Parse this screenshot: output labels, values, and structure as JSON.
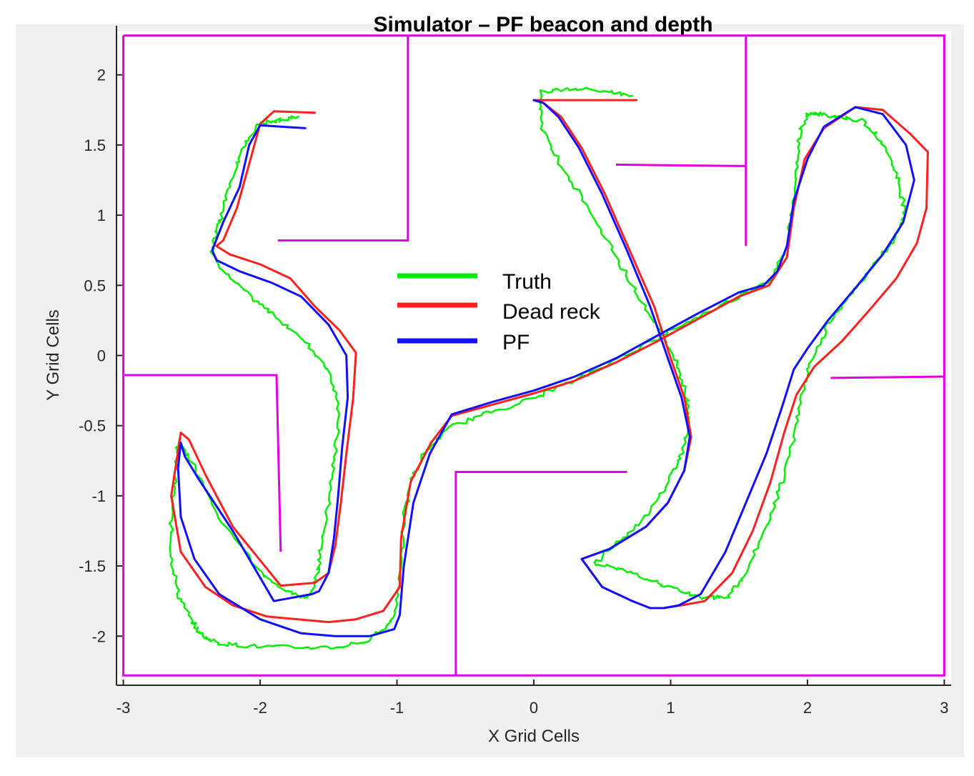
{
  "chart_data": {
    "type": "line",
    "title": "Simulator – PF beacon and depth",
    "xlabel": "X Grid Cells",
    "ylabel": "Y Grid Cells",
    "xlim": [
      -3.05,
      3.05
    ],
    "ylim": [
      -2.35,
      2.35
    ],
    "xticks": [
      -3,
      -2,
      -1,
      0,
      1,
      2,
      3
    ],
    "yticks": [
      -2,
      -1.5,
      -1,
      -0.5,
      0,
      0.5,
      1,
      1.5,
      2
    ],
    "grid": false,
    "legend_position": "center",
    "colors": {
      "truth": "#00ee00",
      "dead_reck": "#ff2020",
      "pf": "#1010ff",
      "walls": "#e000e0"
    },
    "walls": [
      [
        [
          -3.0,
          2.28
        ],
        [
          3.0,
          2.28
        ],
        [
          3.0,
          -2.28
        ],
        [
          -3.0,
          -2.28
        ],
        [
          -3.0,
          2.28
        ]
      ],
      [
        [
          -0.92,
          2.28
        ],
        [
          -0.92,
          0.82
        ],
        [
          -1.87,
          0.82
        ]
      ],
      [
        [
          -3.0,
          -0.14
        ],
        [
          -1.88,
          -0.14
        ],
        [
          -1.85,
          -1.4
        ]
      ],
      [
        [
          1.55,
          2.28
        ],
        [
          1.55,
          0.78
        ]
      ],
      [
        [
          0.6,
          1.36
        ],
        [
          1.55,
          1.35
        ]
      ],
      [
        [
          -0.57,
          -2.28
        ],
        [
          -0.57,
          -0.83
        ],
        [
          0.68,
          -0.83
        ]
      ],
      [
        [
          2.17,
          -0.16
        ],
        [
          3.0,
          -0.15
        ]
      ]
    ],
    "series": [
      {
        "name": "Truth",
        "color": "#00ee00",
        "noisy": true,
        "x": [
          -1.72,
          -1.85,
          -2.0,
          -2.12,
          -2.2,
          -2.28,
          -2.33,
          -2.35,
          -2.22,
          -2.05,
          -1.85,
          -1.65,
          -1.5,
          -1.42,
          -1.46,
          -1.5,
          -1.55,
          -1.58,
          -1.62,
          -1.68,
          -1.8,
          -2.0,
          -2.3,
          -2.5,
          -2.6,
          -2.62,
          -2.65,
          -2.65,
          -2.6,
          -2.5,
          -2.42,
          -2.3,
          -2.1,
          -1.8,
          -1.45,
          -1.2,
          -1.02,
          -0.97,
          -0.95,
          -0.9,
          -0.8,
          -0.6,
          -0.3,
          0.0,
          0.3,
          0.6,
          0.9,
          1.2,
          1.5,
          1.75,
          1.85,
          1.9,
          1.92,
          1.95,
          2.0,
          2.1,
          2.25,
          2.4,
          2.55,
          2.65,
          2.7,
          2.7,
          2.6,
          2.45,
          2.3,
          2.15,
          2.02,
          1.95,
          1.88,
          1.8,
          1.68,
          1.55,
          1.42,
          1.25,
          1.0,
          0.85,
          0.6,
          0.45,
          0.55,
          0.8,
          0.98,
          1.08,
          1.13,
          1.12,
          1.05,
          0.9,
          0.75,
          0.58,
          0.4,
          0.2,
          0.05,
          0.05,
          0.3,
          0.55,
          0.72
        ],
        "y": [
          1.7,
          1.68,
          1.65,
          1.5,
          1.28,
          1.0,
          0.85,
          0.72,
          0.55,
          0.4,
          0.25,
          0.08,
          -0.1,
          -0.4,
          -0.75,
          -1.05,
          -1.35,
          -1.55,
          -1.7,
          -1.73,
          -1.68,
          -1.55,
          -1.15,
          -0.75,
          -0.58,
          -0.82,
          -1.15,
          -1.42,
          -1.7,
          -1.9,
          -2.0,
          -2.05,
          -2.07,
          -2.08,
          -2.08,
          -2.03,
          -1.87,
          -1.55,
          -1.15,
          -0.9,
          -0.7,
          -0.5,
          -0.4,
          -0.3,
          -0.18,
          -0.03,
          0.12,
          0.28,
          0.42,
          0.55,
          0.8,
          1.1,
          1.4,
          1.6,
          1.72,
          1.72,
          1.7,
          1.67,
          1.52,
          1.3,
          1.1,
          0.95,
          0.78,
          0.6,
          0.42,
          0.22,
          -0.05,
          -0.35,
          -0.65,
          -0.95,
          -1.25,
          -1.55,
          -1.72,
          -1.73,
          -1.65,
          -1.6,
          -1.52,
          -1.48,
          -1.38,
          -1.18,
          -0.9,
          -0.7,
          -0.52,
          -0.3,
          -0.05,
          0.2,
          0.45,
          0.75,
          1.05,
          1.35,
          1.65,
          1.88,
          1.9,
          1.88,
          1.85
        ]
      },
      {
        "name": "Dead reck",
        "color": "#ff2020",
        "noisy": false,
        "x": [
          -1.6,
          -1.9,
          -2.0,
          -2.07,
          -2.17,
          -2.27,
          -2.32,
          -2.22,
          -2.0,
          -1.78,
          -1.6,
          -1.42,
          -1.3,
          -1.32,
          -1.37,
          -1.41,
          -1.45,
          -1.5,
          -1.6,
          -1.85,
          -2.2,
          -2.4,
          -2.52,
          -2.58,
          -2.6,
          -2.65,
          -2.58,
          -2.4,
          -2.2,
          -1.95,
          -1.5,
          -1.3,
          -1.1,
          -0.98,
          -0.97,
          -0.9,
          -0.75,
          -0.6,
          -0.3,
          0.0,
          0.3,
          0.6,
          0.9,
          1.2,
          1.5,
          1.72,
          1.85,
          1.9,
          1.98,
          2.12,
          2.35,
          2.55,
          2.75,
          2.88,
          2.87,
          2.8,
          2.65,
          2.45,
          2.25,
          2.05,
          1.92,
          1.83,
          1.73,
          1.6,
          1.45,
          1.25,
          1.08,
          0.95,
          0.85,
          0.72,
          0.5,
          0.35,
          0.55,
          0.82,
          0.98,
          1.1,
          1.15,
          1.1,
          1.0,
          0.88,
          0.7,
          0.52,
          0.35,
          0.2,
          0.07,
          0.0,
          0.75
        ],
        "y": [
          1.73,
          1.74,
          1.65,
          1.4,
          1.05,
          0.82,
          0.78,
          0.72,
          0.65,
          0.55,
          0.35,
          0.18,
          0.02,
          -0.3,
          -0.7,
          -1.05,
          -1.35,
          -1.55,
          -1.62,
          -1.64,
          -1.22,
          -0.85,
          -0.6,
          -0.55,
          -0.68,
          -1.0,
          -1.4,
          -1.65,
          -1.78,
          -1.86,
          -1.9,
          -1.88,
          -1.82,
          -1.65,
          -1.3,
          -0.9,
          -0.62,
          -0.43,
          -0.35,
          -0.27,
          -0.18,
          -0.05,
          0.1,
          0.26,
          0.42,
          0.5,
          0.7,
          1.05,
          1.4,
          1.62,
          1.77,
          1.75,
          1.58,
          1.45,
          1.05,
          0.8,
          0.55,
          0.32,
          0.1,
          -0.08,
          -0.28,
          -0.55,
          -0.9,
          -1.25,
          -1.55,
          -1.75,
          -1.78,
          -1.8,
          -1.8,
          -1.75,
          -1.65,
          -1.45,
          -1.38,
          -1.22,
          -1.05,
          -0.82,
          -0.58,
          -0.3,
          -0.02,
          0.35,
          0.75,
          1.15,
          1.48,
          1.7,
          1.8,
          1.82,
          1.82
        ]
      },
      {
        "name": "PF",
        "color": "#1010ff",
        "noisy": false,
        "x": [
          -1.67,
          -2.0,
          -2.08,
          -2.15,
          -2.27,
          -2.35,
          -2.32,
          -2.15,
          -1.92,
          -1.7,
          -1.5,
          -1.37,
          -1.36,
          -1.4,
          -1.43,
          -1.46,
          -1.5,
          -1.57,
          -1.62,
          -1.9,
          -2.2,
          -2.45,
          -2.55,
          -2.58,
          -2.6,
          -2.58,
          -2.48,
          -2.3,
          -2.0,
          -1.7,
          -1.45,
          -1.2,
          -1.02,
          -0.98,
          -0.95,
          -0.88,
          -0.76,
          -0.6,
          -0.3,
          0.0,
          0.3,
          0.6,
          0.9,
          1.2,
          1.5,
          1.68,
          1.78,
          1.85,
          1.9,
          2.0,
          2.12,
          2.35,
          2.55,
          2.72,
          2.78,
          2.7,
          2.55,
          2.35,
          2.15,
          2.0,
          1.9,
          1.82,
          1.7,
          1.55,
          1.4,
          1.22,
          1.06,
          0.95,
          0.85,
          0.72,
          0.5,
          0.35,
          0.55,
          0.82,
          0.98,
          1.1,
          1.14,
          1.08,
          0.98,
          0.85,
          0.68,
          0.5,
          0.33,
          0.18,
          0.07,
          0.0
        ],
        "y": [
          1.62,
          1.64,
          1.5,
          1.2,
          0.95,
          0.75,
          0.68,
          0.6,
          0.52,
          0.42,
          0.22,
          0.0,
          -0.3,
          -0.65,
          -1.0,
          -1.3,
          -1.55,
          -1.68,
          -1.7,
          -1.75,
          -1.25,
          -0.88,
          -0.72,
          -0.62,
          -0.8,
          -1.15,
          -1.45,
          -1.7,
          -1.88,
          -1.98,
          -2.0,
          -2.0,
          -1.95,
          -1.85,
          -1.5,
          -1.05,
          -0.7,
          -0.42,
          -0.33,
          -0.25,
          -0.15,
          -0.02,
          0.14,
          0.3,
          0.45,
          0.5,
          0.6,
          0.78,
          1.1,
          1.4,
          1.63,
          1.77,
          1.72,
          1.5,
          1.25,
          0.95,
          0.72,
          0.48,
          0.25,
          0.05,
          -0.1,
          -0.35,
          -0.7,
          -1.05,
          -1.4,
          -1.7,
          -1.78,
          -1.8,
          -1.8,
          -1.75,
          -1.65,
          -1.45,
          -1.38,
          -1.22,
          -1.05,
          -0.82,
          -0.58,
          -0.3,
          -0.02,
          0.35,
          0.75,
          1.15,
          1.48,
          1.7,
          1.8,
          1.82
        ]
      }
    ],
    "legend": [
      "Truth",
      "Dead reck",
      "PF"
    ]
  }
}
